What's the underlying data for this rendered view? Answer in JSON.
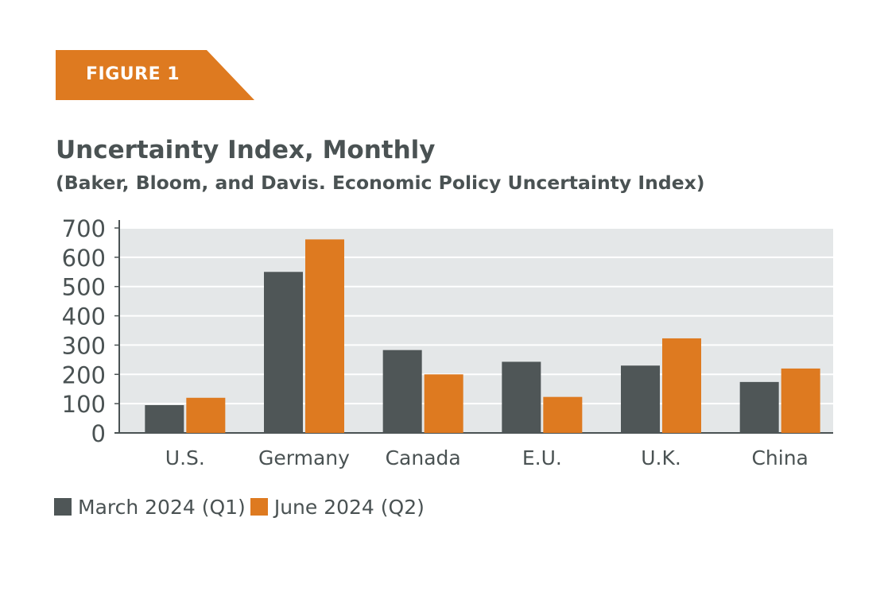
{
  "figure_label": "FIGURE 1",
  "colors": {
    "badge": "#de7a20",
    "text": "#4a5253",
    "plot_background": "#e4e7e8",
    "grid": "#ffffff"
  },
  "chart_data": {
    "type": "bar",
    "title": "Uncertainty Index, Monthly",
    "subtitle": "(Baker, Bloom, and Davis. Economic Policy Uncertainty Index)",
    "categories": [
      "U.S.",
      "Germany",
      "Canada",
      "E.U.",
      "U.K.",
      "China"
    ],
    "series": [
      {
        "name": "March 2024 (Q1)",
        "color": "#4f5657",
        "values": [
          95,
          550,
          283,
          243,
          230,
          174
        ]
      },
      {
        "name": "June 2024 (Q2)",
        "color": "#de7a20",
        "values": [
          120,
          661,
          200,
          123,
          323,
          220
        ]
      }
    ],
    "ylim": [
      0,
      700
    ],
    "yticks": [
      0,
      100,
      200,
      300,
      400,
      500,
      600,
      700
    ],
    "xlabel": "",
    "ylabel": "",
    "grid": true,
    "legend_position": "bottom-left"
  }
}
